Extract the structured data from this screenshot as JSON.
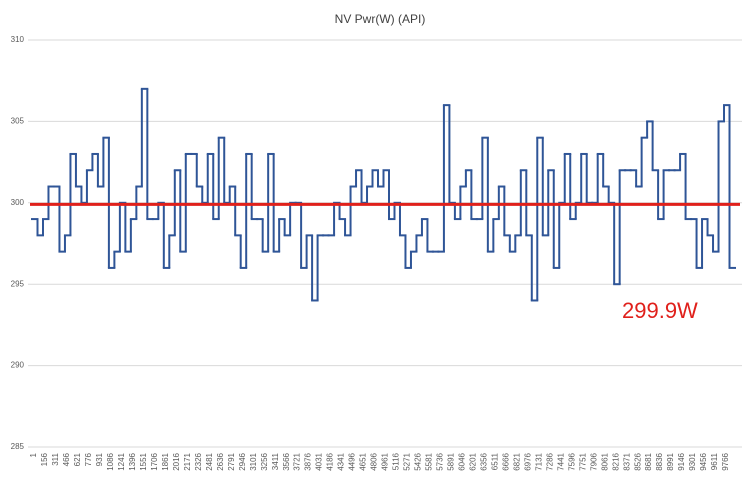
{
  "chart_data": {
    "type": "step-line",
    "title": "NV Pwr(W) (API)",
    "categories": [
      "1",
      null,
      "156",
      null,
      "311",
      null,
      "466",
      null,
      "621",
      null,
      "776",
      null,
      "931",
      null,
      "1086",
      null,
      "1241",
      null,
      "1396",
      null,
      "1551",
      null,
      "1706",
      null,
      "1861",
      null,
      "2016",
      null,
      "2171",
      null,
      "2326",
      null,
      "2481",
      null,
      "2636",
      null,
      "2791",
      null,
      "2946",
      null,
      "3101",
      null,
      "3256",
      null,
      "3411",
      null,
      "3566",
      null,
      "3721",
      null,
      "3876",
      null,
      "4031",
      null,
      "4186",
      null,
      "4341",
      null,
      "4496",
      null,
      "4651",
      null,
      "4806",
      null,
      "4961",
      null,
      "5116",
      null,
      "5271",
      null,
      "5426",
      null,
      "5581",
      null,
      "5736",
      null,
      "5891",
      null,
      "6046",
      null,
      "6201",
      null,
      "6356",
      null,
      "6511",
      null,
      "6666",
      null,
      "6821",
      null,
      "6976",
      null,
      "7131",
      null,
      "7286",
      null,
      "7441",
      null,
      "7596",
      null,
      "7751",
      null,
      "7906",
      null,
      "8061",
      null,
      "8216",
      null,
      "8371",
      null,
      "8526",
      null,
      "8681",
      null,
      "8836",
      null,
      "8991",
      null,
      "9146",
      null,
      "9301",
      null,
      "9456",
      null,
      "9611",
      null,
      "9766",
      null
    ],
    "series": [
      {
        "name": "NV Pwr(W) (API)",
        "color": "#2f5597",
        "values": [
          299,
          298,
          299,
          301,
          301,
          297,
          298,
          303,
          301,
          300,
          302,
          303,
          301,
          304,
          296,
          297,
          300,
          297,
          299,
          301,
          307,
          299,
          299,
          300,
          296,
          298,
          302,
          297,
          303,
          303,
          301,
          300,
          303,
          299,
          304,
          300,
          301,
          298,
          296,
          303,
          299,
          299,
          297,
          303,
          297,
          299,
          298,
          300,
          300,
          296,
          298,
          294,
          298,
          298,
          298,
          300,
          299,
          298,
          301,
          302,
          300,
          301,
          302,
          301,
          302,
          299,
          300,
          298,
          296,
          297,
          298,
          299,
          297,
          297,
          297,
          306,
          300,
          299,
          301,
          302,
          299,
          299,
          304,
          297,
          299,
          301,
          298,
          297,
          298,
          302,
          298,
          294,
          304,
          298,
          302,
          296,
          300,
          303,
          299,
          300,
          303,
          300,
          300,
          303,
          301,
          300,
          295,
          302,
          302,
          302,
          301,
          304,
          305,
          302,
          299,
          302,
          302,
          302,
          303,
          299,
          299,
          296,
          299,
          298,
          297,
          305,
          306,
          296
        ]
      }
    ],
    "mean": 299.9,
    "mean_label": "299.9W",
    "mean_color": "#e0201b",
    "ylim": [
      285,
      310
    ],
    "yticks": [
      285,
      290,
      295,
      300,
      305,
      310
    ],
    "grid": true
  }
}
